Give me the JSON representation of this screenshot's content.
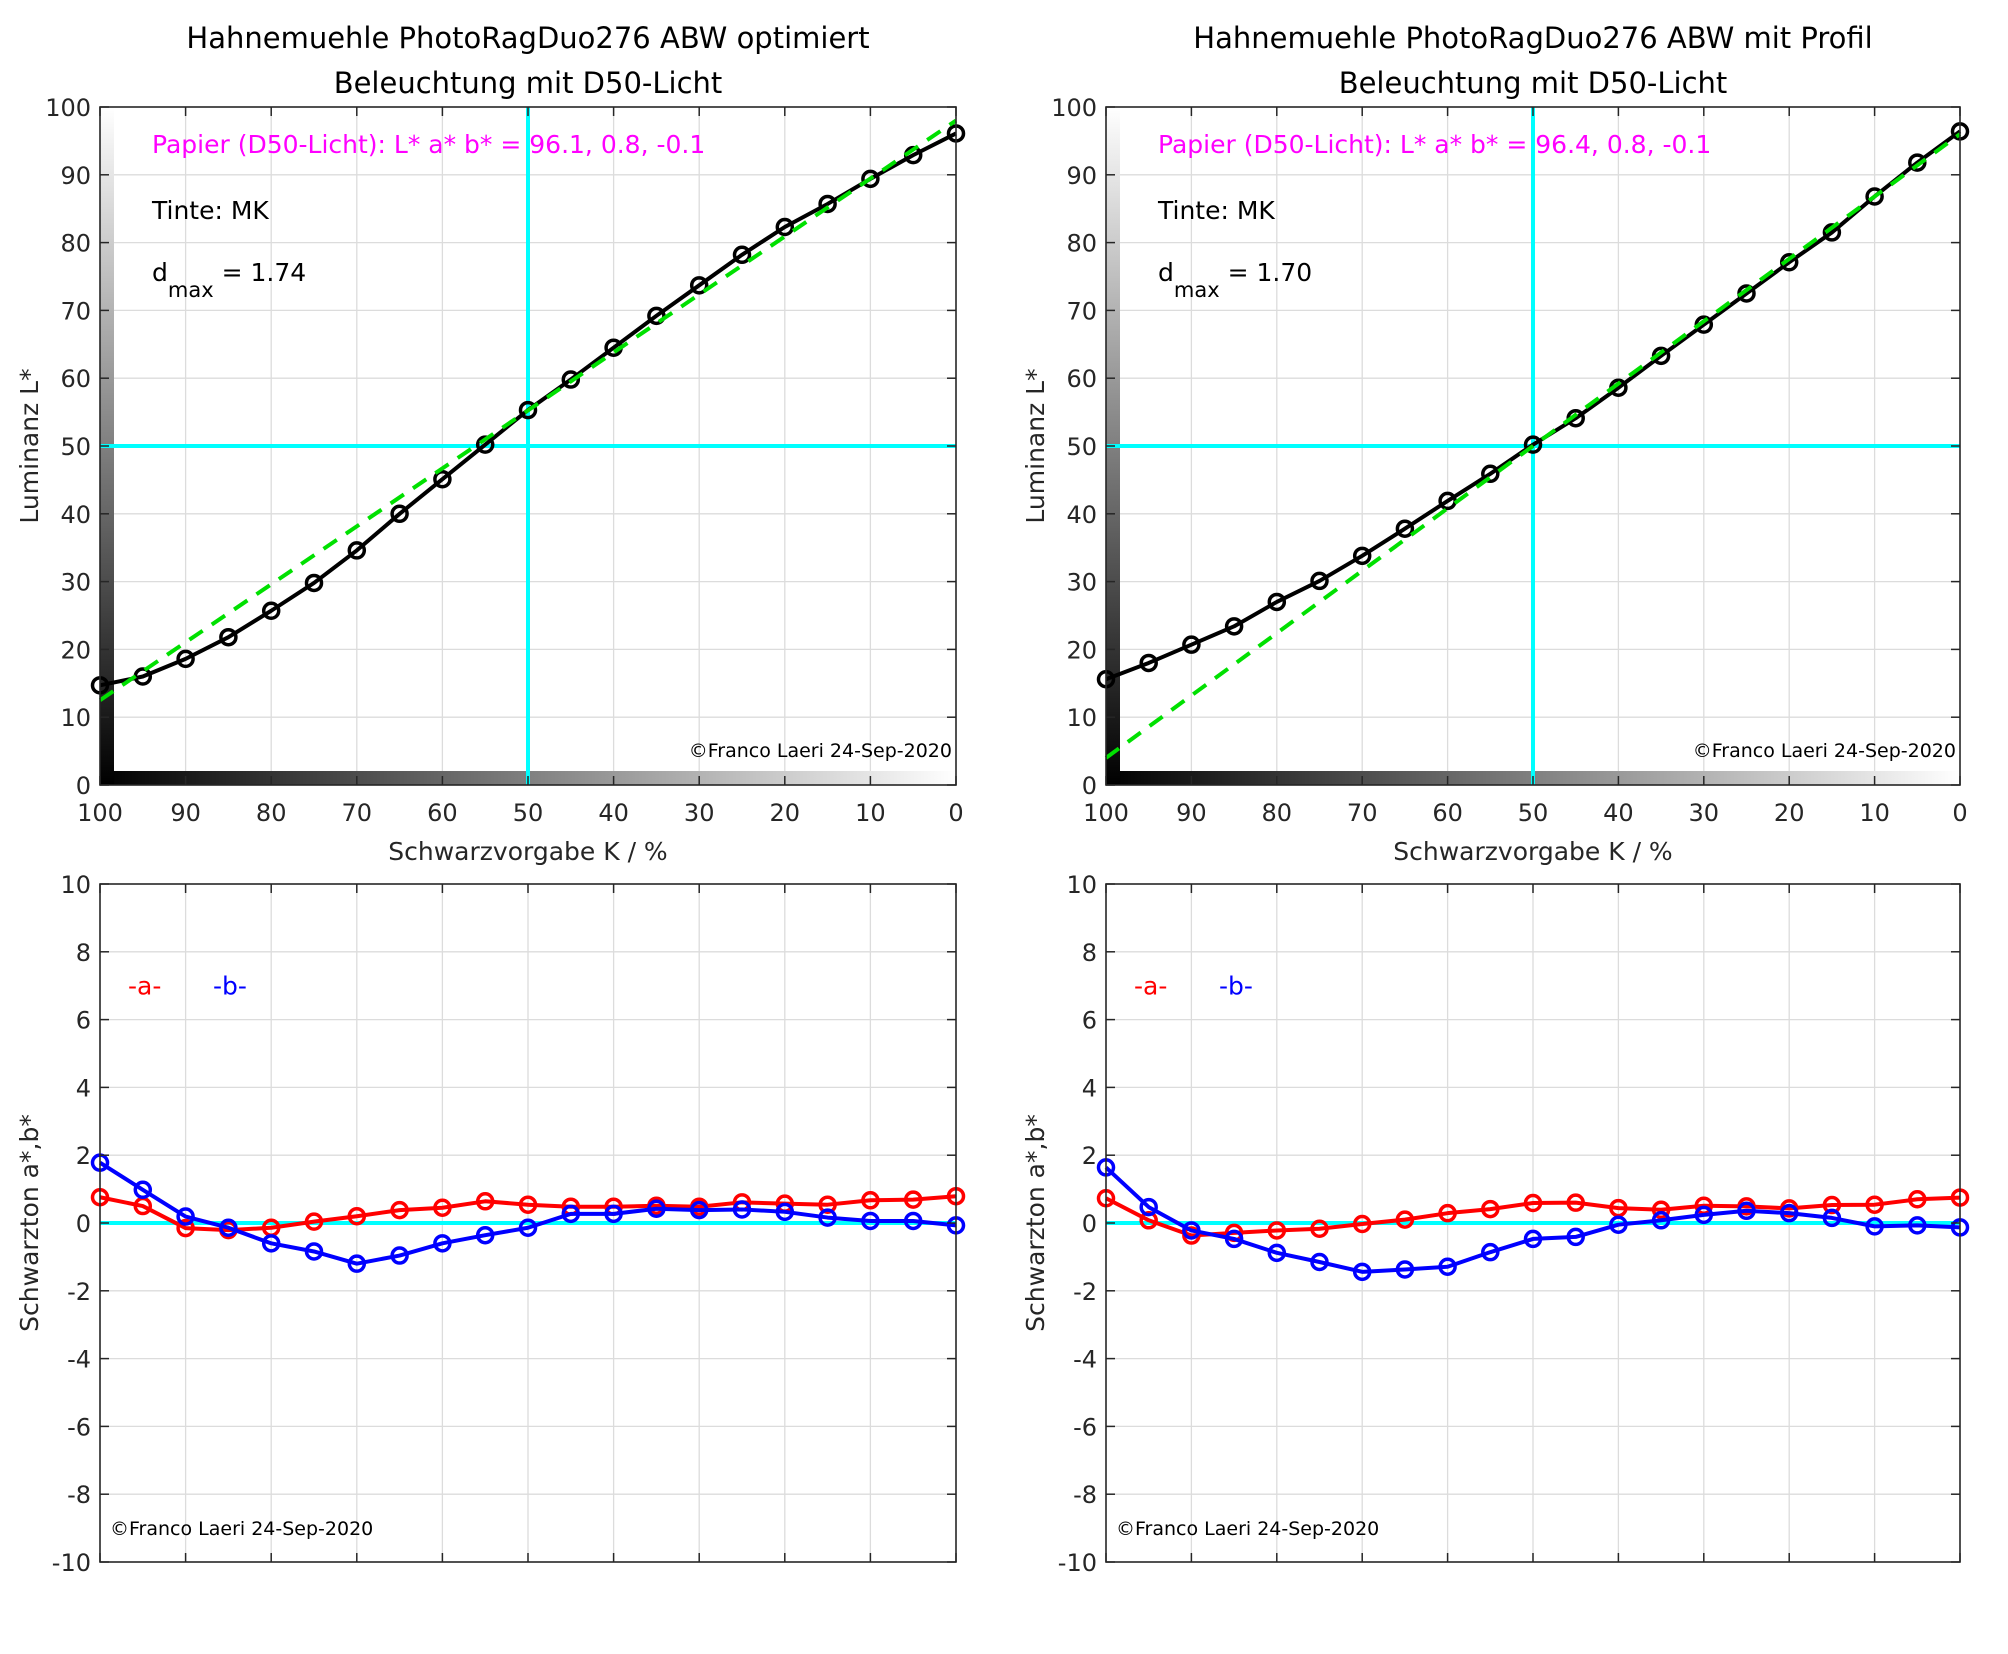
{
  "chart_data": [
    {
      "id": "top-left",
      "type": "line",
      "title": [
        "Hahnemuehle PhotoRagDuo276 ABW optimiert",
        "Beleuchtung mit D50-Licht"
      ],
      "xlabel": "Schwarzvorgabe  K / %",
      "ylabel": "Luminanz  L*",
      "xlim": [
        100,
        0
      ],
      "ylim": [
        0,
        100
      ],
      "xticks": [
        100,
        90,
        80,
        70,
        60,
        50,
        40,
        30,
        20,
        10,
        0
      ],
      "yticks": [
        0,
        10,
        20,
        30,
        40,
        50,
        60,
        70,
        80,
        90,
        100
      ],
      "grid": true,
      "gray_ramp": true,
      "x": [
        100,
        95,
        90,
        85,
        80,
        75,
        70,
        65,
        60,
        55,
        50,
        45,
        40,
        35,
        30,
        25,
        20,
        15,
        10,
        5,
        0
      ],
      "series": [
        {
          "name": "L*",
          "color": "#000000",
          "marker": "circle",
          "values": [
            14.7,
            16.0,
            18.6,
            21.8,
            25.7,
            29.8,
            34.6,
            40.0,
            45.1,
            50.2,
            55.3,
            59.8,
            64.5,
            69.2,
            73.7,
            78.2,
            82.3,
            85.7,
            89.4,
            92.9,
            96.1
          ]
        },
        {
          "name": "reference",
          "color": "#00e000",
          "style": "dashed",
          "line": [
            [
              100,
              12.5
            ],
            [
              0,
              98.0
            ]
          ]
        }
      ],
      "crosshair": {
        "x": 50,
        "y": 50,
        "color": "#00ffff"
      },
      "annotations": [
        {
          "text": "Papier (D50-Licht): L* a* b* = 96.1, 0.8, -0.1",
          "color": "#ff00ff"
        },
        {
          "text": "Tinte:  MK",
          "color": "#000000"
        },
        {
          "text_main": "d",
          "text_sub": "max",
          "text_after": " = 1.74",
          "color": "#000000"
        }
      ],
      "credit": "©Franco Laeri  24-Sep-2020"
    },
    {
      "id": "top-right",
      "type": "line",
      "title": [
        "Hahnemuehle PhotoRagDuo276 ABW mit Profil",
        "Beleuchtung mit D50-Licht"
      ],
      "xlabel": "Schwarzvorgabe  K / %",
      "ylabel": "Luminanz  L*",
      "xlim": [
        100,
        0
      ],
      "ylim": [
        0,
        100
      ],
      "xticks": [
        100,
        90,
        80,
        70,
        60,
        50,
        40,
        30,
        20,
        10,
        0
      ],
      "yticks": [
        0,
        10,
        20,
        30,
        40,
        50,
        60,
        70,
        80,
        90,
        100
      ],
      "grid": true,
      "gray_ramp": true,
      "x": [
        100,
        95,
        90,
        85,
        80,
        75,
        70,
        65,
        60,
        55,
        50,
        45,
        40,
        35,
        30,
        25,
        20,
        15,
        10,
        5,
        0
      ],
      "series": [
        {
          "name": "L*",
          "color": "#000000",
          "marker": "circle",
          "values": [
            15.6,
            18.0,
            20.7,
            23.4,
            27.0,
            30.1,
            33.8,
            37.8,
            41.9,
            45.9,
            50.2,
            54.1,
            58.6,
            63.3,
            67.9,
            72.5,
            77.1,
            81.5,
            86.8,
            91.8,
            96.4
          ]
        },
        {
          "name": "reference",
          "color": "#00e000",
          "style": "dashed",
          "line": [
            [
              100,
              4.0
            ],
            [
              0,
              96.0
            ]
          ]
        }
      ],
      "crosshair": {
        "x": 50,
        "y": 50,
        "color": "#00ffff"
      },
      "annotations": [
        {
          "text": "Papier (D50-Licht): L* a* b* = 96.4, 0.8, -0.1",
          "color": "#ff00ff"
        },
        {
          "text": "Tinte:  MK",
          "color": "#000000"
        },
        {
          "text_main": "d",
          "text_sub": "max",
          "text_after": " = 1.70",
          "color": "#000000"
        }
      ],
      "credit": "©Franco Laeri  24-Sep-2020"
    },
    {
      "id": "bottom-left",
      "type": "line",
      "title": [],
      "xlabel": "",
      "ylabel": "Schwarzton a*,b*",
      "xlim": [
        100,
        0
      ],
      "ylim": [
        -10,
        10
      ],
      "xticks": [
        100,
        90,
        80,
        70,
        60,
        50,
        40,
        30,
        20,
        10,
        0
      ],
      "yticks": [
        -10,
        -8,
        -6,
        -4,
        -2,
        0,
        2,
        4,
        6,
        8,
        10
      ],
      "grid": true,
      "gray_ramp": false,
      "x": [
        100,
        95,
        90,
        85,
        80,
        75,
        70,
        65,
        60,
        55,
        50,
        45,
        40,
        35,
        30,
        25,
        20,
        15,
        10,
        5,
        0
      ],
      "series": [
        {
          "name": "-a-",
          "color": "#ff0000",
          "marker": "circle",
          "values": [
            0.76,
            0.5,
            -0.15,
            -0.21,
            -0.14,
            0.04,
            0.2,
            0.38,
            0.45,
            0.64,
            0.54,
            0.48,
            0.48,
            0.51,
            0.48,
            0.61,
            0.57,
            0.54,
            0.67,
            0.69,
            0.79
          ]
        },
        {
          "name": "-b-",
          "color": "#0000ff",
          "marker": "circle",
          "values": [
            1.78,
            0.98,
            0.19,
            -0.14,
            -0.6,
            -0.84,
            -1.2,
            -0.96,
            -0.6,
            -0.36,
            -0.14,
            0.27,
            0.27,
            0.42,
            0.38,
            0.4,
            0.33,
            0.16,
            0.06,
            0.06,
            -0.07
          ]
        }
      ],
      "zero_line": {
        "y": 0,
        "color": "#00ffff"
      },
      "legend": [
        {
          "text": "-a-",
          "color": "#ff0000"
        },
        {
          "text": "-b-",
          "color": "#0000ff"
        }
      ],
      "legend_position": "top-left",
      "credit": "©Franco Laeri  24-Sep-2020"
    },
    {
      "id": "bottom-right",
      "type": "line",
      "title": [],
      "xlabel": "",
      "ylabel": "Schwarzton a*,b*",
      "xlim": [
        100,
        0
      ],
      "ylim": [
        -10,
        10
      ],
      "xticks": [
        100,
        90,
        80,
        70,
        60,
        50,
        40,
        30,
        20,
        10,
        0
      ],
      "yticks": [
        -10,
        -8,
        -6,
        -4,
        -2,
        0,
        2,
        4,
        6,
        8,
        10
      ],
      "grid": true,
      "gray_ramp": false,
      "x": [
        100,
        95,
        90,
        85,
        80,
        75,
        70,
        65,
        60,
        55,
        50,
        45,
        40,
        35,
        30,
        25,
        20,
        15,
        10,
        5,
        0
      ],
      "series": [
        {
          "name": "-a-",
          "color": "#ff0000",
          "marker": "circle",
          "values": [
            0.73,
            0.08,
            -0.37,
            -0.29,
            -0.22,
            -0.17,
            -0.03,
            0.1,
            0.29,
            0.41,
            0.59,
            0.6,
            0.44,
            0.39,
            0.51,
            0.49,
            0.43,
            0.53,
            0.54,
            0.7,
            0.75
          ]
        },
        {
          "name": "-b-",
          "color": "#0000ff",
          "marker": "circle",
          "values": [
            1.64,
            0.47,
            -0.22,
            -0.47,
            -0.88,
            -1.15,
            -1.44,
            -1.37,
            -1.29,
            -0.86,
            -0.47,
            -0.41,
            -0.05,
            0.08,
            0.24,
            0.36,
            0.29,
            0.15,
            -0.1,
            -0.07,
            -0.13
          ]
        }
      ],
      "zero_line": {
        "y": 0,
        "color": "#00ffff"
      },
      "legend": [
        {
          "text": "-a-",
          "color": "#ff0000"
        },
        {
          "text": "-b-",
          "color": "#0000ff"
        }
      ],
      "legend_position": "top-left",
      "credit": "©Franco Laeri  24-Sep-2020"
    }
  ]
}
